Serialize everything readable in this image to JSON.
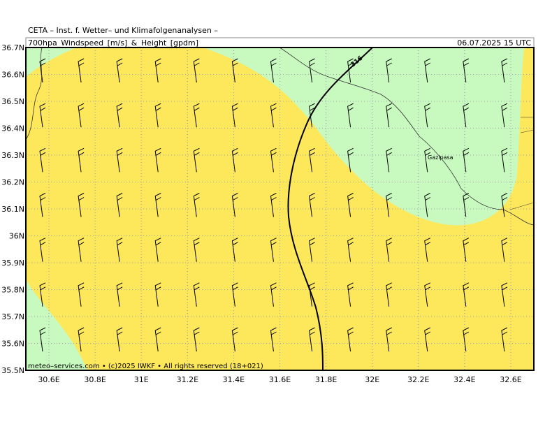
{
  "header": {
    "institute": "CETA – Inst. f. Wetter– und Klimafolgenanalysen –",
    "field": "700hpa_Windspeed_[m/s]_&_Height_[gpdm]",
    "valid_time": "06.07.2025 15 UTC"
  },
  "map": {
    "lat_range": [
      35.5,
      36.7
    ],
    "lon_range": [
      30.5,
      32.7
    ],
    "lat_ticks": [
      {
        "value": 35.5,
        "label": "35.5N"
      },
      {
        "value": 35.6,
        "label": "35.6N"
      },
      {
        "value": 35.7,
        "label": "35.7N"
      },
      {
        "value": 35.8,
        "label": "35.8N"
      },
      {
        "value": 35.9,
        "label": "35.9N"
      },
      {
        "value": 36,
        "label": "36N"
      },
      {
        "value": 36.1,
        "label": "36.1N"
      },
      {
        "value": 36.2,
        "label": "36.2N"
      },
      {
        "value": 36.3,
        "label": "36.3N"
      },
      {
        "value": 36.4,
        "label": "36.4N"
      },
      {
        "value": 36.5,
        "label": "36.5N"
      },
      {
        "value": 36.6,
        "label": "36.6N"
      },
      {
        "value": 36.7,
        "label": "36.7N"
      }
    ],
    "lon_ticks": [
      {
        "value": 30.6,
        "label": "30.6E"
      },
      {
        "value": 30.8,
        "label": "30.8E"
      },
      {
        "value": 31,
        "label": "31E"
      },
      {
        "value": 31.2,
        "label": "31.2E"
      },
      {
        "value": 31.4,
        "label": "31.4E"
      },
      {
        "value": 31.6,
        "label": "31.6E"
      },
      {
        "value": 31.8,
        "label": "31.8E"
      },
      {
        "value": 32,
        "label": "32E"
      },
      {
        "value": 32.2,
        "label": "32.2E"
      },
      {
        "value": 32.4,
        "label": "32.4E"
      },
      {
        "value": 32.6,
        "label": "32.6E"
      }
    ],
    "contour_label": "316",
    "city": "Gazipasa"
  },
  "footer": "meteo–services.com • (c)2025 IWKF • All rights reserved (18+021)"
}
